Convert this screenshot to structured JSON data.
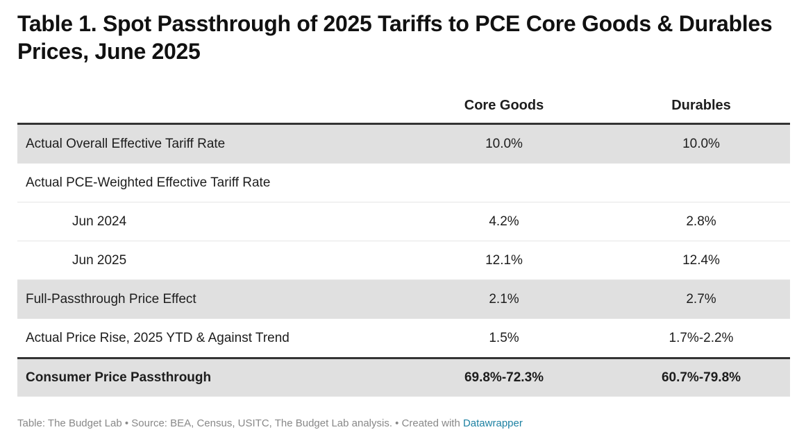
{
  "title": "Table 1. Spot Passthrough of 2025 Tariffs to PCE Core Goods & Durables Prices, June 2025",
  "columns": [
    "",
    "Core Goods",
    "Durables"
  ],
  "rows": [
    {
      "label": "Actual Overall Effective Tariff Rate",
      "core_goods": "10.0%",
      "durables": "10.0%"
    },
    {
      "label": "Actual PCE-Weighted Effective Tariff Rate",
      "core_goods": "",
      "durables": ""
    },
    {
      "label": "Jun 2024",
      "core_goods": "4.2%",
      "durables": "2.8%"
    },
    {
      "label": "Jun 2025",
      "core_goods": "12.1%",
      "durables": "12.4%"
    },
    {
      "label": "Full-Passthrough Price Effect",
      "core_goods": "2.1%",
      "durables": "2.7%"
    },
    {
      "label": "Actual Price Rise, 2025 YTD & Against Trend",
      "core_goods": "1.5%",
      "durables": "1.7%-2.2%"
    },
    {
      "label": "Consumer Price Passthrough",
      "core_goods": "69.8%-72.3%",
      "durables": "60.7%-79.8%"
    }
  ],
  "footer": {
    "text": "Table: The Budget Lab • Source: BEA, Census, USITC, The Budget Lab analysis. • Created with ",
    "link": "Datawrapper"
  },
  "colors": {
    "row_shade": "#e0e0e0",
    "rule": "#333333",
    "link": "#1d81a2",
    "footer_text": "#888888"
  }
}
